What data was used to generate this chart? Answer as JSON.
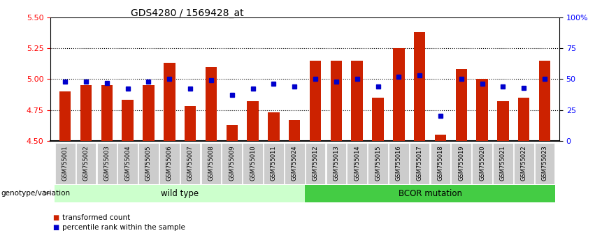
{
  "title": "GDS4280 / 1569428_at",
  "samples": [
    "GSM755001",
    "GSM755002",
    "GSM755003",
    "GSM755004",
    "GSM755005",
    "GSM755006",
    "GSM755007",
    "GSM755008",
    "GSM755009",
    "GSM755010",
    "GSM755011",
    "GSM755024",
    "GSM755012",
    "GSM755013",
    "GSM755014",
    "GSM755015",
    "GSM755016",
    "GSM755017",
    "GSM755018",
    "GSM755019",
    "GSM755020",
    "GSM755021",
    "GSM755022",
    "GSM755023"
  ],
  "bar_values": [
    4.9,
    4.95,
    4.95,
    4.83,
    4.95,
    5.13,
    4.78,
    5.1,
    4.63,
    4.82,
    4.73,
    4.67,
    5.15,
    5.15,
    5.15,
    4.85,
    5.25,
    5.38,
    4.55,
    5.08,
    5.0,
    4.82,
    4.85,
    5.15
  ],
  "percentile_values": [
    48,
    48,
    47,
    42,
    48,
    50,
    42,
    49,
    37,
    42,
    46,
    44,
    50,
    48,
    50,
    44,
    52,
    53,
    20,
    50,
    46,
    44,
    43,
    50
  ],
  "group1_label": "wild type",
  "group2_label": "BCOR mutation",
  "group1_count": 12,
  "group2_count": 12,
  "ylim_left": [
    4.5,
    5.5
  ],
  "ylim_right": [
    0,
    100
  ],
  "yticks_left": [
    4.5,
    4.75,
    5.0,
    5.25,
    5.5
  ],
  "yticks_right": [
    0,
    25,
    50,
    75,
    100
  ],
  "bar_color": "#cc2200",
  "dot_color": "#0000cc",
  "group1_bg": "#ccffcc",
  "group2_bg": "#44cc44",
  "tick_bg": "#cccccc",
  "legend_bar_label": "transformed count",
  "legend_dot_label": "percentile rank within the sample",
  "bar_width": 0.55,
  "bar_bottom": 4.5
}
